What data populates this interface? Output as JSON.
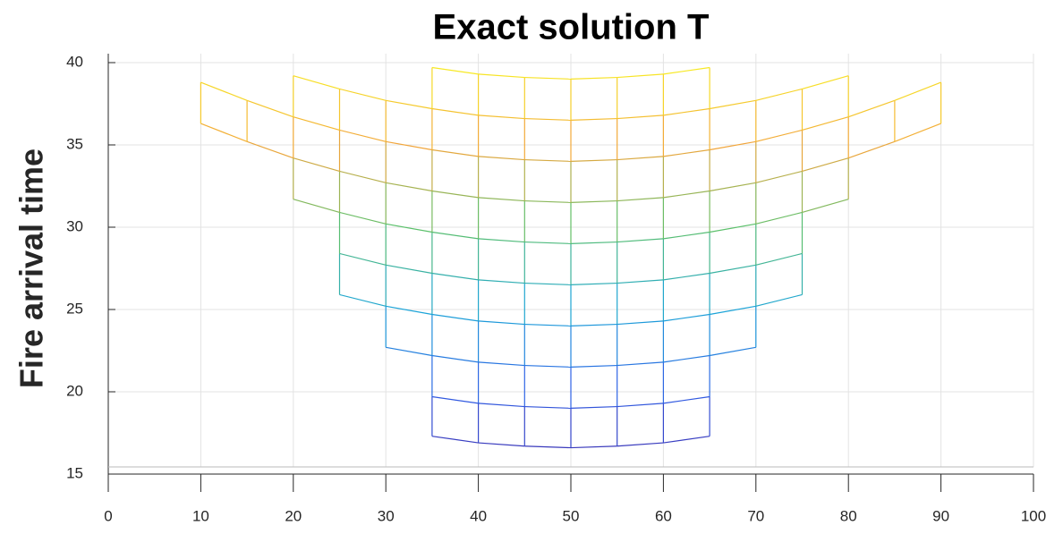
{
  "chart_data": {
    "type": "mesh",
    "title": "Exact solution T",
    "y_label": "Fire arrival time",
    "x": [
      0,
      5,
      10,
      15,
      20,
      25,
      30,
      35,
      40,
      45,
      50,
      55,
      60,
      65,
      70,
      75,
      80,
      85,
      90,
      95,
      100
    ],
    "rows": [
      {
        "values": [
          null,
          null,
          null,
          null,
          null,
          null,
          null,
          17.3,
          16.9,
          16.7,
          16.6,
          16.7,
          16.9,
          17.3,
          null,
          null,
          null,
          null,
          null,
          null,
          null
        ]
      },
      {
        "values": [
          null,
          null,
          null,
          null,
          null,
          null,
          null,
          19.7,
          19.3,
          19.1,
          19,
          19.1,
          19.3,
          19.7,
          null,
          null,
          null,
          null,
          null,
          null,
          null
        ]
      },
      {
        "values": [
          null,
          null,
          null,
          null,
          null,
          null,
          22.7,
          22.2,
          21.8,
          21.6,
          21.5,
          21.6,
          21.8,
          22.2,
          22.7,
          null,
          null,
          null,
          null,
          null,
          null
        ]
      },
      {
        "values": [
          null,
          null,
          null,
          null,
          null,
          25.9,
          25.2,
          24.7,
          24.3,
          24.1,
          24,
          24.1,
          24.3,
          24.7,
          25.2,
          25.9,
          null,
          null,
          null,
          null,
          null
        ]
      },
      {
        "values": [
          null,
          null,
          null,
          null,
          null,
          28.4,
          27.7,
          27.2,
          26.8,
          26.6,
          26.5,
          26.6,
          26.8,
          27.2,
          27.7,
          28.4,
          null,
          null,
          null,
          null,
          null
        ]
      },
      {
        "values": [
          null,
          null,
          null,
          null,
          31.7,
          30.9,
          30.2,
          29.7,
          29.3,
          29.1,
          29,
          29.1,
          29.3,
          29.7,
          30.2,
          30.9,
          31.7,
          null,
          null,
          null,
          null
        ]
      },
      {
        "values": [
          null,
          null,
          36.3,
          35.2,
          34.2,
          33.4,
          32.7,
          32.2,
          31.8,
          31.6,
          31.5,
          31.6,
          31.8,
          32.2,
          32.7,
          33.4,
          34.2,
          35.2,
          36.3,
          null,
          null
        ]
      },
      {
        "values": [
          null,
          null,
          38.8,
          37.7,
          36.7,
          35.9,
          35.2,
          34.7,
          34.3,
          34.1,
          34,
          34.1,
          34.3,
          34.7,
          35.2,
          35.9,
          36.7,
          37.7,
          38.8,
          null,
          null
        ]
      },
      {
        "values": [
          null,
          null,
          null,
          null,
          39.2,
          38.4,
          37.7,
          37.2,
          36.8,
          36.6,
          36.5,
          36.6,
          36.8,
          37.2,
          37.7,
          38.4,
          39.2,
          null,
          null,
          null,
          null
        ]
      },
      {
        "values": [
          null,
          null,
          null,
          null,
          null,
          null,
          null,
          39.7,
          39.3,
          39.1,
          39,
          39.1,
          39.3,
          39.7,
          null,
          null,
          null,
          null,
          null,
          null,
          null
        ]
      }
    ],
    "colormap": [
      "#3e26a8",
      "#2f5fe6",
      "#1aa4d8",
      "#5cc06a",
      "#f2a53a",
      "#f8f020"
    ],
    "xlim": [
      0,
      100
    ],
    "xticks": [
      0,
      10,
      20,
      30,
      40,
      50,
      60,
      70,
      80,
      90,
      100
    ],
    "ylim": [
      15,
      40
    ],
    "yticks": [
      15,
      20,
      25,
      30,
      35,
      40
    ],
    "grid": true
  }
}
